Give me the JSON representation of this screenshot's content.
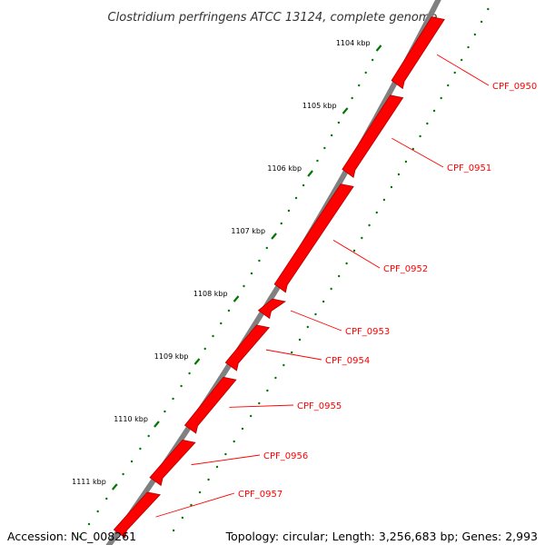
{
  "title": "Clostridium perfringens ATCC 13124, complete genome",
  "footer": {
    "accession": "Accession: NC_008261",
    "summary": "Topology: circular; Length: 3,256,683 bp; Genes: 2,993"
  },
  "colors": {
    "gene": "#ff0000",
    "gene_dark": "#b30000",
    "backbone": "#808080",
    "tick": "#007700",
    "label_line": "#ff0000"
  },
  "axis_ticks": [
    "1104 kbp",
    "1105 kbp",
    "1106 kbp",
    "1107 kbp",
    "1108 kbp",
    "1109 kbp",
    "1110 kbp",
    "1111 kbp"
  ],
  "genes": [
    {
      "name": "CPF_0950"
    },
    {
      "name": "CPF_0951"
    },
    {
      "name": "CPF_0952"
    },
    {
      "name": "CPF_0953"
    },
    {
      "name": "CPF_0954"
    },
    {
      "name": "CPF_0955"
    },
    {
      "name": "CPF_0956"
    },
    {
      "name": "CPF_0957"
    }
  ]
}
